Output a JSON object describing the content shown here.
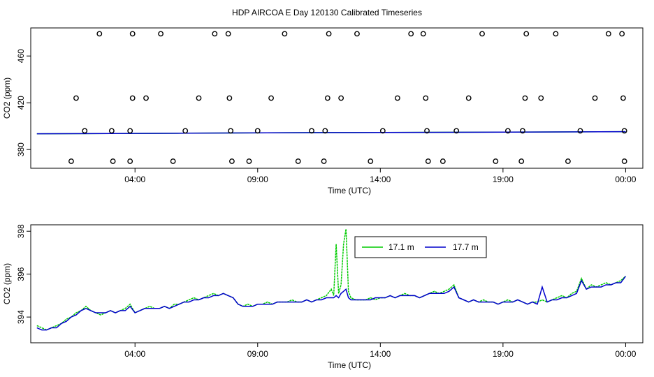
{
  "title": "HDP AIRCOA E  Day 120130  Calibrated Timeseries",
  "chart_data": [
    {
      "type": "scatter",
      "xlabel": "Time (UTC)",
      "ylabel": "CO2 (ppm)",
      "xticks": [
        {
          "h": 4,
          "label": "04:00"
        },
        {
          "h": 9,
          "label": "09:00"
        },
        {
          "h": 14,
          "label": "14:00"
        },
        {
          "h": 19,
          "label": "19:00"
        },
        {
          "h": 24,
          "label": "00:00"
        }
      ],
      "yticks": [
        380,
        420,
        460
      ],
      "ylim": [
        364,
        484
      ],
      "xlim": [
        -0.25,
        24.7
      ],
      "grid": false,
      "calibration_points": [
        {
          "x": 1.4,
          "y": 370
        },
        {
          "x": 1.95,
          "y": 396
        },
        {
          "x": 1.6,
          "y": 424
        },
        {
          "x": 2.55,
          "y": 479
        },
        {
          "x": 3.1,
          "y": 370
        },
        {
          "x": 3.05,
          "y": 396
        },
        {
          "x": 3.8,
          "y": 396
        },
        {
          "x": 3.8,
          "y": 370
        },
        {
          "x": 3.9,
          "y": 424
        },
        {
          "x": 3.9,
          "y": 479
        },
        {
          "x": 4.45,
          "y": 424
        },
        {
          "x": 5.05,
          "y": 479
        },
        {
          "x": 5.55,
          "y": 370
        },
        {
          "x": 6.05,
          "y": 396
        },
        {
          "x": 6.6,
          "y": 424
        },
        {
          "x": 7.25,
          "y": 479
        },
        {
          "x": 7.8,
          "y": 479
        },
        {
          "x": 7.85,
          "y": 424
        },
        {
          "x": 7.9,
          "y": 396
        },
        {
          "x": 7.95,
          "y": 370
        },
        {
          "x": 8.65,
          "y": 370
        },
        {
          "x": 9.0,
          "y": 396
        },
        {
          "x": 9.55,
          "y": 424
        },
        {
          "x": 10.1,
          "y": 479
        },
        {
          "x": 10.65,
          "y": 370
        },
        {
          "x": 11.2,
          "y": 396
        },
        {
          "x": 11.75,
          "y": 396
        },
        {
          "x": 11.7,
          "y": 370
        },
        {
          "x": 11.85,
          "y": 424
        },
        {
          "x": 11.9,
          "y": 479
        },
        {
          "x": 12.4,
          "y": 424
        },
        {
          "x": 13.05,
          "y": 479
        },
        {
          "x": 13.6,
          "y": 370
        },
        {
          "x": 14.1,
          "y": 396
        },
        {
          "x": 14.7,
          "y": 424
        },
        {
          "x": 15.25,
          "y": 479
        },
        {
          "x": 15.75,
          "y": 479
        },
        {
          "x": 15.85,
          "y": 424
        },
        {
          "x": 15.9,
          "y": 396
        },
        {
          "x": 15.95,
          "y": 370
        },
        {
          "x": 16.55,
          "y": 370
        },
        {
          "x": 17.1,
          "y": 396
        },
        {
          "x": 17.6,
          "y": 424
        },
        {
          "x": 18.15,
          "y": 479
        },
        {
          "x": 18.7,
          "y": 370
        },
        {
          "x": 19.2,
          "y": 396
        },
        {
          "x": 19.8,
          "y": 396
        },
        {
          "x": 19.75,
          "y": 370
        },
        {
          "x": 19.9,
          "y": 424
        },
        {
          "x": 19.95,
          "y": 479
        },
        {
          "x": 20.55,
          "y": 424
        },
        {
          "x": 21.15,
          "y": 479
        },
        {
          "x": 21.65,
          "y": 370
        },
        {
          "x": 22.15,
          "y": 396
        },
        {
          "x": 22.75,
          "y": 424
        },
        {
          "x": 23.3,
          "y": 479
        },
        {
          "x": 23.85,
          "y": 479
        },
        {
          "x": 23.9,
          "y": 424
        },
        {
          "x": 23.95,
          "y": 396
        },
        {
          "x": 23.95,
          "y": 370
        }
      ],
      "series": [
        {
          "name": "17.1 m",
          "color": "#00cc00",
          "x": [
            0,
            6,
            12,
            18,
            24
          ],
          "values": [
            393.5,
            394.0,
            394.5,
            394.8,
            395.3
          ]
        },
        {
          "name": "17.7 m",
          "color": "#0000cc",
          "x": [
            0,
            6,
            12,
            18,
            24
          ],
          "values": [
            393.5,
            394.0,
            394.5,
            394.8,
            395.3
          ]
        }
      ]
    },
    {
      "type": "line",
      "xlabel": "Time (UTC)",
      "ylabel": "CO2 (ppm)",
      "xticks": [
        {
          "h": 4,
          "label": "04:00"
        },
        {
          "h": 9,
          "label": "09:00"
        },
        {
          "h": 14,
          "label": "14:00"
        },
        {
          "h": 19,
          "label": "19:00"
        },
        {
          "h": 24,
          "label": "00:00"
        }
      ],
      "yticks": [
        394,
        396,
        398
      ],
      "ylim": [
        392.8,
        398.3
      ],
      "xlim": [
        -0.25,
        24.7
      ],
      "grid": false,
      "legend": {
        "position": "top-center"
      },
      "series": [
        {
          "name": "17.1 m",
          "color": "#00cc00",
          "x": [
            0.0,
            0.2,
            0.4,
            0.6,
            0.8,
            1.0,
            1.2,
            1.4,
            1.6,
            1.8,
            2.0,
            2.2,
            2.4,
            2.6,
            2.8,
            3.0,
            3.2,
            3.4,
            3.6,
            3.8,
            4.0,
            4.2,
            4.4,
            4.6,
            4.8,
            5.0,
            5.2,
            5.4,
            5.6,
            5.8,
            6.0,
            6.2,
            6.4,
            6.6,
            6.8,
            7.0,
            7.2,
            7.4,
            7.6,
            7.8,
            8.0,
            8.2,
            8.4,
            8.6,
            8.8,
            9.0,
            9.2,
            9.4,
            9.6,
            9.8,
            10.0,
            10.2,
            10.4,
            10.6,
            10.8,
            11.0,
            11.2,
            11.4,
            11.6,
            11.8,
            12.0,
            12.1,
            12.2,
            12.3,
            12.4,
            12.5,
            12.6,
            12.7,
            12.8,
            13.0,
            13.2,
            13.4,
            13.6,
            13.8,
            14.0,
            14.2,
            14.4,
            14.6,
            14.8,
            15.0,
            15.2,
            15.4,
            15.6,
            15.8,
            16.0,
            16.2,
            16.4,
            16.6,
            16.8,
            17.0,
            17.2,
            17.4,
            17.6,
            17.8,
            18.0,
            18.2,
            18.4,
            18.6,
            18.8,
            19.0,
            19.2,
            19.4,
            19.6,
            19.8,
            20.0,
            20.2,
            20.4,
            20.6,
            20.8,
            21.0,
            21.2,
            21.4,
            21.6,
            21.8,
            22.0,
            22.2,
            22.4,
            22.6,
            22.8,
            23.0,
            23.2,
            23.4,
            23.6,
            23.8,
            24.0
          ],
          "values": [
            393.6,
            393.5,
            393.4,
            393.5,
            393.6,
            393.7,
            393.9,
            394.0,
            394.2,
            394.3,
            394.5,
            394.3,
            394.2,
            394.1,
            394.2,
            394.3,
            394.2,
            394.3,
            394.4,
            394.6,
            394.2,
            394.3,
            394.4,
            394.5,
            394.4,
            394.4,
            394.5,
            394.4,
            394.6,
            394.6,
            394.7,
            394.8,
            394.9,
            394.8,
            394.9,
            395.0,
            395.1,
            395.0,
            395.1,
            395.0,
            394.9,
            394.6,
            394.5,
            394.6,
            394.5,
            394.6,
            394.6,
            394.7,
            394.6,
            394.7,
            394.7,
            394.7,
            394.8,
            394.7,
            394.7,
            394.8,
            394.7,
            394.8,
            394.9,
            395.0,
            395.3,
            395.0,
            397.4,
            395.1,
            395.5,
            397.4,
            398.1,
            395.2,
            394.9,
            394.8,
            394.8,
            394.8,
            394.9,
            394.8,
            394.9,
            394.9,
            395.0,
            394.9,
            395.0,
            395.1,
            395.0,
            395.0,
            394.9,
            395.0,
            395.1,
            395.2,
            395.1,
            395.2,
            395.3,
            395.5,
            394.9,
            394.8,
            394.7,
            394.8,
            394.7,
            394.8,
            394.7,
            394.7,
            394.6,
            394.7,
            394.8,
            394.7,
            394.8,
            394.7,
            394.6,
            394.7,
            394.7,
            394.8,
            394.7,
            394.8,
            394.9,
            395.0,
            394.9,
            395.1,
            395.2,
            395.8,
            395.3,
            395.5,
            395.4,
            395.5,
            395.6,
            395.5,
            395.6,
            395.7,
            395.9
          ]
        },
        {
          "name": "17.7 m",
          "color": "#0000cc",
          "x": [
            0.0,
            0.2,
            0.4,
            0.6,
            0.8,
            1.0,
            1.2,
            1.4,
            1.6,
            1.8,
            2.0,
            2.2,
            2.4,
            2.6,
            2.8,
            3.0,
            3.2,
            3.4,
            3.6,
            3.8,
            4.0,
            4.2,
            4.4,
            4.6,
            4.8,
            5.0,
            5.2,
            5.4,
            5.6,
            5.8,
            6.0,
            6.2,
            6.4,
            6.6,
            6.8,
            7.0,
            7.2,
            7.4,
            7.6,
            7.8,
            8.0,
            8.2,
            8.4,
            8.6,
            8.8,
            9.0,
            9.2,
            9.4,
            9.6,
            9.8,
            10.0,
            10.2,
            10.4,
            10.6,
            10.8,
            11.0,
            11.2,
            11.4,
            11.6,
            11.8,
            12.0,
            12.1,
            12.2,
            12.3,
            12.4,
            12.5,
            12.6,
            12.7,
            12.8,
            13.0,
            13.2,
            13.4,
            13.6,
            13.8,
            14.0,
            14.2,
            14.4,
            14.6,
            14.8,
            15.0,
            15.2,
            15.4,
            15.6,
            15.8,
            16.0,
            16.2,
            16.4,
            16.6,
            16.8,
            17.0,
            17.2,
            17.4,
            17.6,
            17.8,
            18.0,
            18.2,
            18.4,
            18.6,
            18.8,
            19.0,
            19.2,
            19.4,
            19.6,
            19.8,
            20.0,
            20.2,
            20.4,
            20.6,
            20.8,
            21.0,
            21.2,
            21.4,
            21.6,
            21.8,
            22.0,
            22.2,
            22.4,
            22.6,
            22.8,
            23.0,
            23.2,
            23.4,
            23.6,
            23.8,
            24.0
          ],
          "values": [
            393.5,
            393.4,
            393.4,
            393.5,
            393.5,
            393.7,
            393.8,
            394.0,
            394.1,
            394.3,
            394.4,
            394.3,
            394.2,
            394.2,
            394.2,
            394.3,
            394.2,
            394.3,
            394.3,
            394.5,
            394.2,
            394.3,
            394.4,
            394.4,
            394.4,
            394.4,
            394.5,
            394.4,
            394.5,
            394.6,
            394.7,
            394.7,
            394.8,
            394.8,
            394.9,
            394.9,
            395.0,
            395.0,
            395.1,
            395.0,
            394.9,
            394.6,
            394.5,
            394.5,
            394.5,
            394.6,
            394.6,
            394.6,
            394.6,
            394.7,
            394.7,
            394.7,
            394.7,
            394.7,
            394.7,
            394.8,
            394.7,
            394.8,
            394.8,
            394.9,
            394.9,
            394.9,
            395.0,
            394.9,
            395.1,
            395.2,
            395.3,
            394.9,
            394.8,
            394.8,
            394.8,
            394.8,
            394.8,
            394.9,
            394.9,
            394.9,
            395.0,
            394.9,
            395.0,
            395.0,
            395.0,
            395.0,
            394.9,
            395.0,
            395.1,
            395.1,
            395.1,
            395.1,
            395.2,
            395.4,
            394.9,
            394.8,
            394.7,
            394.8,
            394.7,
            394.7,
            394.7,
            394.7,
            394.6,
            394.7,
            394.7,
            394.7,
            394.8,
            394.7,
            394.6,
            394.7,
            394.6,
            395.4,
            394.7,
            394.8,
            394.8,
            394.9,
            394.9,
            395.0,
            395.1,
            395.7,
            395.3,
            395.4,
            395.4,
            395.4,
            395.5,
            395.5,
            395.6,
            395.6,
            395.9
          ]
        }
      ]
    }
  ]
}
